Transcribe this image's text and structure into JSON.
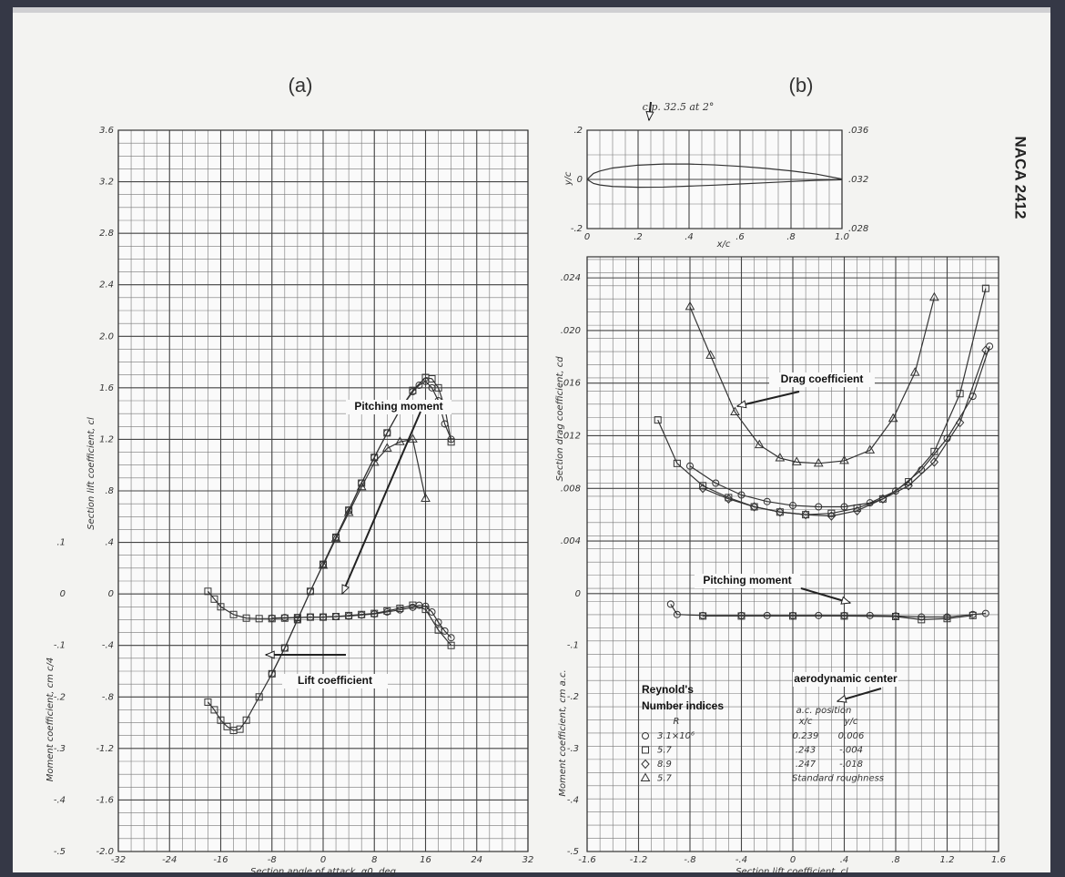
{
  "header": {
    "label": "NACA 2412"
  },
  "chart_data": [
    {
      "type": "line",
      "title": "(a)",
      "xlabel": "Section angle of attack, α0, deg",
      "ylabel": "Section lift coefficient, cl",
      "y2label": "Moment coefficient, cm c/4",
      "xlim": [
        -32,
        32
      ],
      "ylim": [
        -2.0,
        3.6
      ],
      "y2lim": [
        -0.5,
        0.9
      ],
      "grid": true,
      "grid_step": [
        2,
        0.1
      ],
      "xticks": [
        -32,
        -24,
        -16,
        -8,
        0,
        8,
        16,
        24,
        32
      ],
      "yticks": [
        {
          "value": -2.0,
          "label": "-2.0"
        },
        -1.6,
        -1.2,
        {
          "value": -0.8,
          "label": "-.8"
        },
        {
          "value": -0.4,
          "label": "-.4"
        },
        0,
        {
          "value": 0.4,
          "label": ".4"
        },
        {
          "value": 0.8,
          "label": ".8"
        },
        1.2,
        1.6,
        {
          "value": 2.0,
          "label": "2.0"
        },
        2.4,
        2.8,
        3.2,
        3.6
      ],
      "y2ticks": [
        {
          "value": 0.1,
          "label": ".1"
        },
        0,
        {
          "value": -0.1,
          "label": "-.1"
        },
        {
          "value": -0.2,
          "label": "-.2"
        },
        {
          "value": -0.3,
          "label": "-.3"
        },
        {
          "value": -0.4,
          "label": "-.4"
        },
        {
          "value": -0.5,
          "label": "-.5"
        }
      ],
      "series": [
        {
          "marker": "circle",
          "color": "#333333",
          "x": [
            -8,
            -6,
            -4,
            -2,
            0,
            2,
            4,
            6,
            8,
            10,
            12,
            14,
            15,
            16,
            17,
            18,
            19,
            20
          ],
          "values": [
            -0.62,
            -0.42,
            -0.2,
            0.02,
            0.23,
            0.44,
            0.65,
            0.86,
            1.06,
            1.25,
            1.43,
            1.57,
            1.62,
            1.65,
            1.6,
            1.5,
            1.32,
            1.2
          ]
        },
        {
          "marker": "square",
          "color": "#333333",
          "x": [
            -18,
            -17,
            -16,
            -15,
            -14,
            -13,
            -12,
            -10,
            -8,
            -6,
            -4,
            -2,
            0,
            2,
            4,
            6,
            8,
            10,
            12,
            14,
            16,
            17,
            18,
            19,
            20
          ],
          "values": [
            -0.84,
            -0.9,
            -0.98,
            -1.03,
            -1.06,
            -1.05,
            -0.98,
            -0.8,
            -0.62,
            -0.42,
            -0.2,
            0.02,
            0.23,
            0.44,
            0.65,
            0.86,
            1.06,
            1.25,
            1.43,
            1.58,
            1.68,
            1.67,
            1.6,
            1.45,
            1.18
          ]
        },
        {
          "marker": "triangle",
          "color": "#333333",
          "x": [
            0,
            2,
            4,
            6,
            8,
            10,
            12,
            14,
            16
          ],
          "values": [
            0.22,
            0.43,
            0.63,
            0.83,
            1.02,
            1.13,
            1.18,
            1.2,
            0.74
          ]
        },
        {
          "marker": "square",
          "color": "#333333",
          "axis": "y2",
          "x": [
            -18,
            -17,
            -16,
            -14,
            -12,
            -10,
            -8,
            -6,
            -4,
            -2,
            0,
            2,
            4,
            6,
            8,
            10,
            12,
            14,
            16,
            18,
            20
          ],
          "values": [
            0.005,
            -0.01,
            -0.025,
            -0.04,
            -0.047,
            -0.048,
            -0.048,
            -0.047,
            -0.046,
            -0.045,
            -0.045,
            -0.044,
            -0.042,
            -0.04,
            -0.038,
            -0.033,
            -0.028,
            -0.022,
            -0.03,
            -0.07,
            -0.1
          ]
        },
        {
          "marker": "circle",
          "color": "#333333",
          "axis": "y2",
          "x": [
            -8,
            -6,
            -4,
            -2,
            0,
            2,
            4,
            6,
            8,
            10,
            12,
            14,
            15,
            16,
            17,
            18,
            19,
            20
          ],
          "values": [
            -0.047,
            -0.046,
            -0.046,
            -0.045,
            -0.045,
            -0.044,
            -0.043,
            -0.041,
            -0.039,
            -0.035,
            -0.031,
            -0.026,
            -0.022,
            -0.024,
            -0.035,
            -0.055,
            -0.072,
            -0.085
          ]
        }
      ],
      "annotations": [
        "Pitching moment",
        "Lift coefficient"
      ]
    },
    {
      "type": "line",
      "title": "(b)",
      "xlabel": "x/c",
      "ylabel": "y/c",
      "xlim": [
        0,
        1.0
      ],
      "ylim": [
        -0.2,
        0.2
      ],
      "y2lim": [
        0.028,
        0.036
      ],
      "grid": true,
      "grid_step": [
        0.05,
        0.1
      ],
      "xticks": [
        0,
        {
          "value": 0.2,
          "label": ".2"
        },
        {
          "value": 0.4,
          "label": ".4"
        },
        {
          "value": 0.6,
          "label": ".6"
        },
        {
          "value": 0.8,
          "label": ".8"
        },
        {
          "value": 1.0,
          "label": "1.0"
        }
      ],
      "yticks": [
        {
          "value": 0.2,
          "label": ".2"
        },
        0,
        {
          "value": -0.2,
          "label": "-.2"
        }
      ],
      "y2ticks": [
        {
          "value": 0.036,
          "label": ".036"
        },
        {
          "value": 0.032,
          "label": ".032"
        },
        {
          "value": 0.028,
          "label": ".028"
        }
      ],
      "series": [
        {
          "marker": "none",
          "color": "#333333",
          "x": [
            0,
            0.025,
            0.05,
            0.1,
            0.2,
            0.3,
            0.4,
            0.5,
            0.6,
            0.7,
            0.8,
            0.9,
            1.0
          ],
          "values": [
            0,
            0.0245,
            0.034,
            0.0464,
            0.058,
            0.0624,
            0.0624,
            0.059,
            0.053,
            0.0448,
            0.0346,
            0.0216,
            0.0013
          ]
        },
        {
          "marker": "none",
          "color": "#333333",
          "x": [
            0,
            0.025,
            0.05,
            0.1,
            0.2,
            0.3,
            0.4,
            0.5,
            0.6,
            0.7,
            0.8,
            0.9,
            1.0
          ],
          "values": [
            0,
            -0.0165,
            -0.0227,
            -0.0286,
            -0.0319,
            -0.0312,
            -0.0274,
            -0.0234,
            -0.0186,
            -0.0136,
            -0.0086,
            -0.004,
            -0.0013
          ]
        }
      ],
      "annotations": [
        "c.p. 32.5 at 2°"
      ]
    },
    {
      "type": "line",
      "xlabel": "Section lift coefficient, cl",
      "ylabel": "Section drag coefficient, cd",
      "y2label": "Moment coefficient, cm a.c.",
      "xlim": [
        -1.6,
        1.6
      ],
      "ylim": [
        -0.0196,
        0.0256
      ],
      "y2lim": [
        -0.5,
        0.654
      ],
      "grid": true,
      "grid_step": [
        0.1,
        0.001
      ],
      "xticks": [
        -1.6,
        -1.2,
        {
          "value": -0.8,
          "label": "-.8"
        },
        {
          "value": -0.4,
          "label": "-.4"
        },
        0,
        {
          "value": 0.4,
          "label": ".4"
        },
        {
          "value": 0.8,
          "label": ".8"
        },
        1.2,
        1.6
      ],
      "yticks": [
        0,
        {
          "value": 0.004,
          "label": ".004"
        },
        {
          "value": 0.008,
          "label": ".008"
        },
        {
          "value": 0.012,
          "label": ".012"
        },
        {
          "value": 0.016,
          "label": ".016"
        },
        {
          "value": 0.02,
          "label": ".020"
        },
        {
          "value": 0.024,
          "label": ".024"
        }
      ],
      "y2ticks": [
        {
          "value": -0.1,
          "label": "-.1"
        },
        {
          "value": -0.2,
          "label": "-.2"
        },
        {
          "value": -0.3,
          "label": "-.3"
        },
        {
          "value": -0.4,
          "label": "-.4"
        },
        {
          "value": -0.5,
          "label": "-.5"
        }
      ],
      "series": [
        {
          "name": "3.1×10⁶",
          "marker": "circle",
          "color": "#333333",
          "x": [
            -0.8,
            -0.6,
            -0.4,
            -0.2,
            0,
            0.2,
            0.4,
            0.6,
            0.8,
            1.0,
            1.2,
            1.4,
            1.53
          ],
          "values": [
            0.0097,
            0.0084,
            0.0075,
            0.007,
            0.0067,
            0.0066,
            0.0066,
            0.0069,
            0.0078,
            0.0094,
            0.0118,
            0.015,
            0.0188
          ]
        },
        {
          "name": "5.7",
          "marker": "square",
          "color": "#333333",
          "x": [
            -1.05,
            -0.9,
            -0.7,
            -0.5,
            -0.3,
            -0.1,
            0.1,
            0.3,
            0.5,
            0.7,
            0.9,
            1.1,
            1.3,
            1.5
          ],
          "values": [
            0.0132,
            0.0099,
            0.0082,
            0.0073,
            0.0066,
            0.0062,
            0.006,
            0.0061,
            0.0065,
            0.0072,
            0.0085,
            0.0108,
            0.0152,
            0.0232
          ]
        },
        {
          "name": "8.9",
          "marker": "diamond",
          "color": "#333333",
          "x": [
            -0.7,
            -0.5,
            -0.3,
            -0.1,
            0.1,
            0.3,
            0.5,
            0.7,
            0.9,
            1.1,
            1.3,
            1.5
          ],
          "values": [
            0.008,
            0.0072,
            0.0066,
            0.0062,
            0.006,
            0.0059,
            0.0063,
            0.0072,
            0.0082,
            0.01,
            0.013,
            0.0185
          ]
        },
        {
          "name": "5.7",
          "marker": "triangle",
          "color": "#333333",
          "x": [
            -0.8,
            -0.64,
            -0.45,
            -0.26,
            -0.1,
            0.03,
            0.2,
            0.4,
            0.6,
            0.78,
            0.95,
            1.1
          ],
          "values": [
            0.0218,
            0.0181,
            0.0138,
            0.0113,
            0.0103,
            0.01,
            0.0099,
            0.0101,
            0.0109,
            0.0133,
            0.0168,
            0.0225
          ]
        },
        {
          "marker": "circle",
          "color": "#333333",
          "axis": "y2",
          "x": [
            -0.95,
            -0.9,
            -0.7,
            -0.4,
            -0.2,
            0,
            0.2,
            0.4,
            0.6,
            0.8,
            1.0,
            1.2,
            1.4,
            1.5
          ],
          "values": [
            -0.02,
            -0.04,
            -0.042,
            -0.042,
            -0.042,
            -0.042,
            -0.042,
            -0.042,
            -0.042,
            -0.043,
            -0.045,
            -0.045,
            -0.04,
            -0.038
          ]
        },
        {
          "marker": "square",
          "color": "#333333",
          "axis": "y2",
          "x": [
            -0.7,
            -0.4,
            0,
            0.4,
            0.8,
            1.0,
            1.2,
            1.4
          ],
          "values": [
            -0.043,
            -0.043,
            -0.043,
            -0.043,
            -0.044,
            -0.05,
            -0.048,
            -0.042
          ]
        }
      ],
      "annotations": [
        "Drag coefficient",
        "Pitching moment",
        "aerodynamic center"
      ],
      "legend_table": {
        "title": [
          "Reynold's",
          "Number indices"
        ],
        "headers": [
          "R",
          "a.c. position",
          "x/c",
          "y/c"
        ],
        "rows": [
          [
            "0.239",
            "0.006"
          ],
          [
            ".243",
            "-.004"
          ],
          [
            ".247",
            "-.018"
          ],
          [
            "Standard roughness"
          ]
        ]
      }
    }
  ]
}
